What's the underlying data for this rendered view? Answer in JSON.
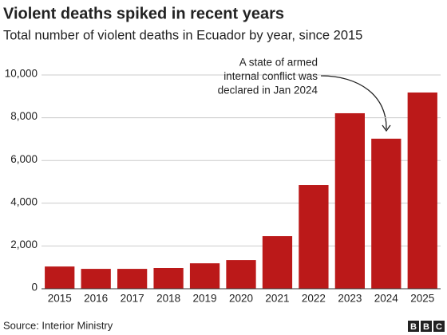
{
  "chart_data": {
    "type": "bar",
    "title": "Violent deaths spiked in recent years",
    "subtitle": "Total number of violent deaths in Ecuador by year, since 2015",
    "categories": [
      "2015",
      "2016",
      "2017",
      "2018",
      "2019",
      "2020",
      "2021",
      "2022",
      "2023",
      "2024",
      "2025"
    ],
    "values": [
      1040,
      930,
      930,
      970,
      1190,
      1340,
      2460,
      4850,
      8210,
      7020,
      9180
    ],
    "color": "#bb1919",
    "ylim": [
      0,
      10000
    ],
    "yticks": [
      0,
      {
        "value": 2000,
        "label": "2,000"
      },
      {
        "value": 4000,
        "label": "4,000"
      },
      {
        "value": 6000,
        "label": "6,000"
      },
      {
        "value": 8000,
        "label": "8,000"
      },
      {
        "value": 10000,
        "label": "10,000"
      }
    ],
    "grid": true,
    "annotation": [
      "A state of armed",
      "internal conflict was",
      "declared in Jan 2024"
    ],
    "source": "Source: Interior Ministry",
    "logo": [
      "B",
      "B",
      "C"
    ]
  }
}
